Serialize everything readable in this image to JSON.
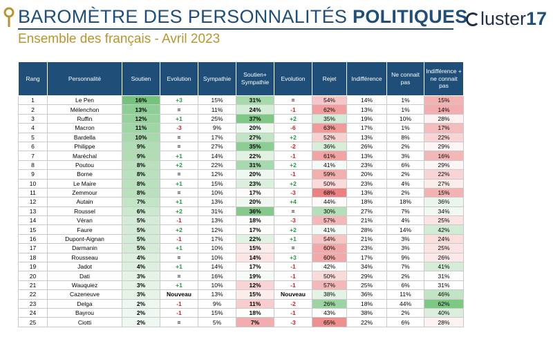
{
  "header": {
    "title_part1": "BAROMÈTRE DES PERSONNALITÉS",
    "title_part2": "POLITIQUES",
    "subtitle": "Ensemble des français - Avril 2023",
    "brand_text": "luster",
    "brand_number": "17"
  },
  "colors": {
    "navy": "#1f4e79",
    "gold": "#b8952e",
    "green_max": "#5cb85c",
    "red_max": "#e86a6a"
  },
  "chart_data": {
    "type": "table",
    "title": "BAROMÈTRE DES PERSONNALITÉS POLITIQUES",
    "subtitle": "Ensemble des français - Avril 2023",
    "columns": [
      "Rang",
      "Personnalité",
      "Soutien",
      "Evolution",
      "Sympathie",
      "Soutien+ Sympathie",
      "Evolution",
      "Rejet",
      "Indifférence",
      "Ne connait pas",
      "Indifférence + ne connait pas"
    ],
    "rows": [
      [
        "1",
        "Le Pen",
        "16%",
        "+3",
        "15%",
        "31%",
        "=",
        "54%",
        "14%",
        "1%",
        "15%"
      ],
      [
        "2",
        "Mélenchon",
        "13%",
        "=",
        "11%",
        "24%",
        "-1",
        "62%",
        "13%",
        "1%",
        "14%"
      ],
      [
        "3",
        "Ruffin",
        "12%",
        "+1",
        "25%",
        "37%",
        "+2",
        "35%",
        "19%",
        "10%",
        "28%"
      ],
      [
        "4",
        "Macron",
        "11%",
        "-3",
        "9%",
        "20%",
        "-6",
        "63%",
        "17%",
        "1%",
        "17%"
      ],
      [
        "5",
        "Bardella",
        "10%",
        "=",
        "17%",
        "27%",
        "+2",
        "52%",
        "13%",
        "8%",
        "22%"
      ],
      [
        "6",
        "Philippe",
        "9%",
        "=",
        "27%",
        "35%",
        "-2",
        "36%",
        "26%",
        "2%",
        "29%"
      ],
      [
        "7",
        "Maréchal",
        "9%",
        "+1",
        "14%",
        "22%",
        "-1",
        "61%",
        "13%",
        "3%",
        "16%"
      ],
      [
        "8",
        "Poutou",
        "8%",
        "+2",
        "22%",
        "31%",
        "+2",
        "41%",
        "23%",
        "6%",
        "29%"
      ],
      [
        "9",
        "Borne",
        "8%",
        "=",
        "12%",
        "20%",
        "-1",
        "59%",
        "20%",
        "2%",
        "22%"
      ],
      [
        "10",
        "Le Maire",
        "8%",
        "+1",
        "15%",
        "23%",
        "+2",
        "50%",
        "23%",
        "4%",
        "27%"
      ],
      [
        "11",
        "Zemmour",
        "8%",
        "=",
        "10%",
        "17%",
        "-3",
        "68%",
        "13%",
        "2%",
        "15%"
      ],
      [
        "12",
        "Autain",
        "7%",
        "+1",
        "13%",
        "20%",
        "+4",
        "44%",
        "18%",
        "18%",
        "36%"
      ],
      [
        "13",
        "Roussel",
        "6%",
        "+2",
        "31%",
        "36%",
        "=",
        "30%",
        "27%",
        "7%",
        "34%"
      ],
      [
        "14",
        "Véran",
        "5%",
        "-1",
        "13%",
        "18%",
        "-3",
        "57%",
        "21%",
        "4%",
        "25%"
      ],
      [
        "15",
        "Faure",
        "5%",
        "+2",
        "12%",
        "17%",
        "+2",
        "41%",
        "28%",
        "14%",
        "42%"
      ],
      [
        "16",
        "Dupont-Aignan",
        "5%",
        "-1",
        "17%",
        "22%",
        "+1",
        "54%",
        "21%",
        "3%",
        "24%"
      ],
      [
        "17",
        "Darmanin",
        "5%",
        "+1",
        "10%",
        "15%",
        "=",
        "60%",
        "23%",
        "3%",
        "25%"
      ],
      [
        "18",
        "Rousseau",
        "4%",
        "=",
        "10%",
        "14%",
        "+3",
        "60%",
        "17%",
        "9%",
        "26%"
      ],
      [
        "19",
        "Jadot",
        "4%",
        "+1",
        "14%",
        "17%",
        "-1",
        "42%",
        "34%",
        "7%",
        "41%"
      ],
      [
        "20",
        "Dati",
        "3%",
        "=",
        "16%",
        "19%",
        "-1",
        "50%",
        "29%",
        "2%",
        "31%"
      ],
      [
        "21",
        "Wauquiez",
        "3%",
        "+1",
        "10%",
        "12%",
        "-1",
        "57%",
        "25%",
        "6%",
        "31%"
      ],
      [
        "22",
        "Cazeneuve",
        "3%",
        "Nouveau",
        "13%",
        "15%",
        "Nouveau",
        "38%",
        "36%",
        "11%",
        "46%"
      ],
      [
        "23",
        "Delga",
        "2%",
        "-1",
        "9%",
        "11%",
        "-2",
        "26%",
        "18%",
        "44%",
        "62%"
      ],
      [
        "24",
        "Bayrou",
        "2%",
        "-1",
        "15%",
        "18%",
        "-1",
        "43%",
        "38%",
        "2%",
        "40%"
      ],
      [
        "25",
        "Ciotti",
        "2%",
        "=",
        "5%",
        "7%",
        "-3",
        "65%",
        "22%",
        "6%",
        "28%"
      ]
    ]
  }
}
